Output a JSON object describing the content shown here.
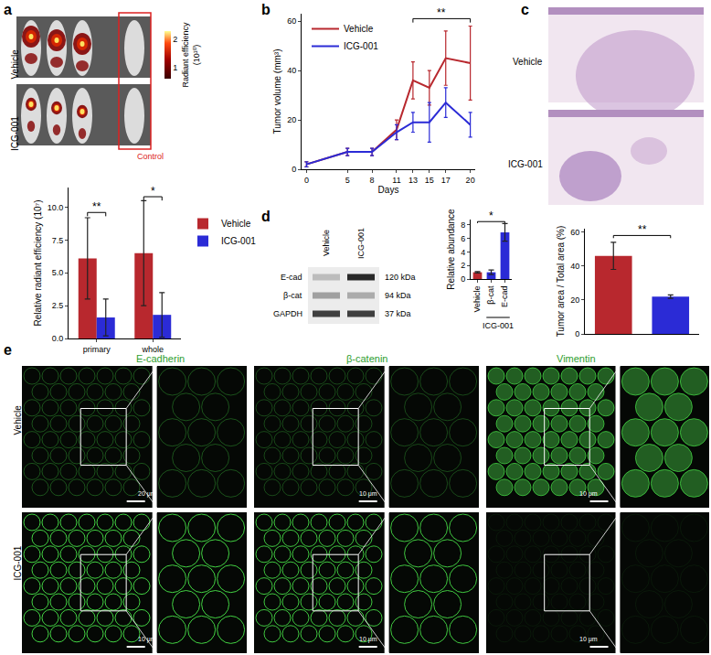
{
  "panel_labels": [
    "a",
    "b",
    "c",
    "d",
    "e"
  ],
  "chart_data": [
    {
      "type": "bar",
      "categories": [
        "primary",
        "whole"
      ],
      "y_label": "Relative radiant efficiency (10⁷)",
      "series": [
        {
          "name": "Vehicle",
          "color": "#b8282e",
          "values": [
            6.1,
            6.5
          ],
          "errors": [
            3.1,
            4.0
          ]
        },
        {
          "name": "ICG-001",
          "color": "#2b2bd6",
          "values": [
            1.6,
            1.8
          ],
          "errors": [
            1.4,
            1.7
          ]
        }
      ],
      "ylim": [
        0,
        11.5
      ],
      "yticks": [
        {
          "value": 0,
          "label": "0.0"
        },
        {
          "value": 2.5,
          "label": "2.5"
        },
        {
          "value": 5,
          "label": "5.0"
        },
        {
          "value": 7.5,
          "label": "7.5"
        },
        {
          "value": 10,
          "label": "10.0"
        }
      ],
      "grid": false,
      "legend": "right",
      "significance": [
        {
          "category": "primary",
          "label": "**",
          "y": 9.6
        },
        {
          "category": "whole",
          "label": "*",
          "y": 10.8
        }
      ]
    },
    {
      "type": "line",
      "x": [
        0,
        5,
        8,
        11,
        13,
        15,
        17,
        20
      ],
      "x_label": "Days",
      "y_label": "Tumor volume (mm³)",
      "series": [
        {
          "name": "Vehicle",
          "color": "#b8282e",
          "values": [
            2,
            7,
            7,
            16,
            36,
            33,
            45,
            43
          ],
          "errors": [
            1,
            1.5,
            1.5,
            4,
            7.5,
            7,
            11,
            15
          ]
        },
        {
          "name": "ICG-001",
          "color": "#2b2bd6",
          "values": [
            2,
            7,
            7,
            15,
            19,
            19,
            27,
            18
          ],
          "errors": [
            1,
            1.5,
            1.5,
            3,
            4,
            8,
            6,
            5
          ]
        }
      ],
      "xlim": [
        -0.6,
        20.6
      ],
      "xticks": [
        0,
        5,
        8,
        11,
        13,
        15,
        17,
        20
      ],
      "ylim": [
        0,
        63
      ],
      "yticks": [
        0,
        20,
        40,
        60
      ],
      "grid": false,
      "legend": "top left",
      "significance": [
        {
          "x0": 13,
          "x1": 20,
          "label": "**",
          "y": 61
        }
      ]
    },
    {
      "type": "bar",
      "categories": [
        null,
        null
      ],
      "y_label": "Tumor area / Total area (%)",
      "values": [
        46,
        22
      ],
      "errors": [
        8,
        1
      ],
      "colors": [
        "#b8282e",
        "#2b2bd6"
      ],
      "ylim": [
        0,
        62
      ],
      "yticks": [
        0,
        20,
        40,
        60
      ],
      "grid": false,
      "tick_labels": "y",
      "significance": [
        {
          "x0": 0,
          "x1": 1,
          "label": "**",
          "y": 58
        }
      ]
    },
    {
      "type": "bar",
      "categories": [
        "Vehicle",
        "β-cat",
        "E-cad"
      ],
      "y_label": "Relative abundance",
      "values": [
        1.0,
        1.0,
        6.9
      ],
      "errors": [
        0.1,
        0.35,
        1.3
      ],
      "colors": [
        "#b8282e",
        "#2b2bd6",
        "#2b2bd6"
      ],
      "ylim": [
        0,
        8.8
      ],
      "yticks": [
        0,
        2,
        4,
        6,
        8
      ],
      "grid": false,
      "group_label": {
        "text": "ICG-001",
        "categories": [
          "β-cat",
          "E-cad"
        ]
      },
      "significance": [
        {
          "x0": 0,
          "x1": 2,
          "label": "*",
          "y": 8.5
        }
      ]
    }
  ],
  "images": [
    {
      "rows": [
        "Vehicle",
        "ICG-001"
      ],
      "control_label": "Control",
      "colorbar": {
        "title": "Radiant efficiency",
        "unit": "(10¹⁰)",
        "range": [
          0.6,
          2.3
        ],
        "ticks": [
          1,
          2
        ]
      }
    },
    {
      "rows": [
        "Vehicle",
        "ICG-001"
      ]
    },
    {
      "lanes": [
        "Vehicle",
        "ICG-001"
      ],
      "bands": [
        {
          "name": "E-cad",
          "size": "120 kDa"
        },
        {
          "name": "β-cat",
          "size": "94 kDa"
        },
        {
          "name": "GAPDH",
          "size": "37 kDa"
        }
      ]
    },
    {
      "columns": [
        "E-cadherin",
        "β-catenin",
        "Vimentin"
      ],
      "rows": [
        "Vehicle",
        "ICG-001"
      ],
      "scale_bars": [
        [
          "20 μm",
          "10 μm",
          "10 μm"
        ],
        [
          "10 μm",
          "10 μm",
          "10 μm"
        ]
      ]
    }
  ]
}
